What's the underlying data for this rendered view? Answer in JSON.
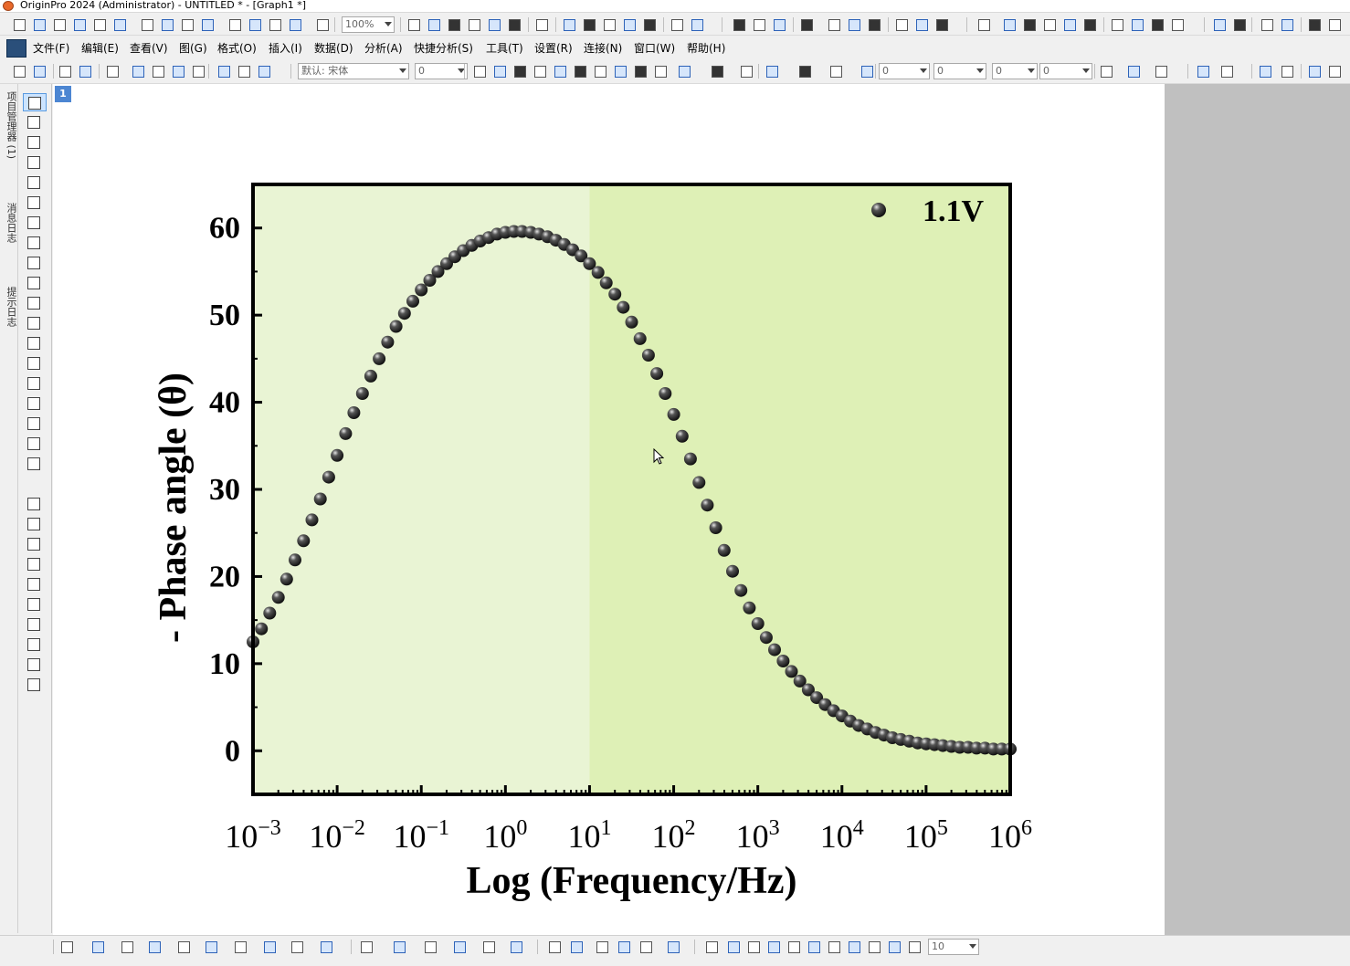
{
  "window": {
    "title": "OriginPro 2024 (Administrator) - UNTITLED * - [Graph1 *]"
  },
  "toolbar": {
    "zoom_value": "100%",
    "font_name": "默认: 宋体",
    "font_size": "0",
    "line_width": "0",
    "pattern_size": "0",
    "bottom_font_size": "10"
  },
  "menu": {
    "items": [
      "文件(F)",
      "编辑(E)",
      "查看(V)",
      "图(G)",
      "格式(O)",
      "插入(I)",
      "数据(D)",
      "分析(A)",
      "快捷分析(S)",
      "工具(T)",
      "设置(R)",
      "连接(N)",
      "窗口(W)",
      "帮助(H)"
    ]
  },
  "dock": {
    "tabs": [
      "项目管理器 (1)",
      "消息日志",
      "提示日志"
    ]
  },
  "graph": {
    "layer_label": "1"
  },
  "colors": {
    "plot_bg_left": "#e9f4d4",
    "plot_bg_right": "#def0b6",
    "marker": "#111111",
    "frame": "#000000",
    "window_bg": "#c0c0c0"
  },
  "chart_data": {
    "type": "scatter",
    "xlabel": "Log (Frequency/Hz)",
    "ylabel": "- Phase angle (θ)",
    "xscale": "log",
    "xlim": [
      0.001,
      1000000
    ],
    "ylim": [
      -5,
      65
    ],
    "x_tick_labels": [
      {
        "base": "10",
        "exp": "−3"
      },
      {
        "base": "10",
        "exp": "−2"
      },
      {
        "base": "10",
        "exp": "−1"
      },
      {
        "base": "10",
        "exp": "0"
      },
      {
        "base": "10",
        "exp": "1"
      },
      {
        "base": "10",
        "exp": "2"
      },
      {
        "base": "10",
        "exp": "3"
      },
      {
        "base": "10",
        "exp": "4"
      },
      {
        "base": "10",
        "exp": "5"
      },
      {
        "base": "10",
        "exp": "6"
      }
    ],
    "y_ticks": [
      0,
      10,
      20,
      30,
      40,
      50,
      60
    ],
    "y_tick_labels": [
      "0",
      "10",
      "20",
      "30",
      "40",
      "50",
      "60"
    ],
    "legend": {
      "position": "top-right",
      "entries": [
        "1.1V"
      ]
    },
    "shaded_regions": [
      {
        "x_from": 0.001,
        "x_to": 10,
        "color": "#e9f4d4"
      },
      {
        "x_from": 10,
        "x_to": 1000000,
        "color": "#def0b6"
      }
    ],
    "series": [
      {
        "name": "1.1V",
        "x": [
          0.001,
          0.00126,
          0.00158,
          0.002,
          0.00251,
          0.00316,
          0.00398,
          0.00501,
          0.00631,
          0.00794,
          0.01,
          0.0126,
          0.0158,
          0.02,
          0.0251,
          0.0316,
          0.0398,
          0.0501,
          0.0631,
          0.0794,
          0.1,
          0.126,
          0.158,
          0.2,
          0.251,
          0.316,
          0.398,
          0.501,
          0.631,
          0.794,
          1,
          1.26,
          1.58,
          2,
          2.51,
          3.16,
          3.98,
          5.01,
          6.31,
          7.94,
          10,
          12.6,
          15.8,
          20,
          25.1,
          31.6,
          39.8,
          50.1,
          63.1,
          79.4,
          100,
          126,
          158,
          200,
          251,
          316,
          398,
          501,
          631,
          794,
          1000,
          1260,
          1580,
          2000,
          2510,
          3160,
          3980,
          5010,
          6310,
          7940,
          10000,
          12600,
          15800,
          20000,
          25100,
          31600,
          39800,
          50100,
          63100,
          79400,
          100000,
          126000,
          158000,
          200000,
          251000,
          316000,
          398000,
          501000,
          631000,
          794000,
          1000000
        ],
        "y": [
          12.5,
          14.0,
          15.8,
          17.6,
          19.7,
          21.9,
          24.1,
          26.5,
          28.9,
          31.4,
          33.9,
          36.4,
          38.8,
          41.0,
          43.0,
          45.0,
          46.9,
          48.7,
          50.2,
          51.6,
          52.9,
          54.0,
          55.0,
          55.9,
          56.7,
          57.4,
          58.0,
          58.5,
          58.9,
          59.3,
          59.5,
          59.6,
          59.6,
          59.5,
          59.3,
          59.0,
          58.6,
          58.1,
          57.5,
          56.8,
          55.9,
          54.9,
          53.7,
          52.4,
          50.9,
          49.2,
          47.3,
          45.4,
          43.3,
          41.0,
          38.6,
          36.1,
          33.5,
          30.8,
          28.2,
          25.6,
          23.0,
          20.6,
          18.4,
          16.4,
          14.6,
          13.0,
          11.6,
          10.3,
          9.1,
          8.0,
          7.0,
          6.1,
          5.3,
          4.6,
          4.0,
          3.4,
          2.9,
          2.5,
          2.1,
          1.8,
          1.5,
          1.3,
          1.1,
          0.9,
          0.8,
          0.7,
          0.6,
          0.5,
          0.4,
          0.4,
          0.3,
          0.3,
          0.2,
          0.2,
          0.2
        ]
      }
    ]
  }
}
